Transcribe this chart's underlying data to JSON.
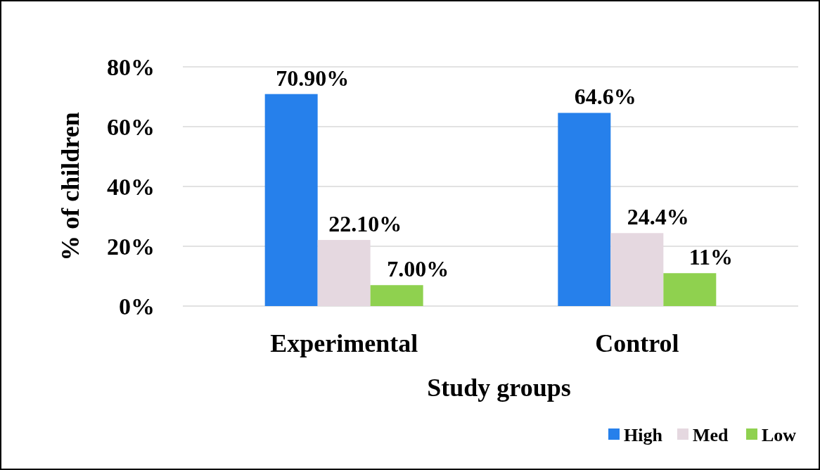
{
  "chart_data": {
    "type": "bar",
    "xlabel": "Study groups",
    "ylabel": "% of children",
    "categories": [
      "Experimental",
      "Control"
    ],
    "series": [
      {
        "name": "High",
        "color": "#2680eb",
        "values": [
          70.9,
          64.6
        ],
        "value_labels": [
          "70.90%",
          "64.6%"
        ]
      },
      {
        "name": "Med",
        "color": "#e5d8e0",
        "values": [
          22.1,
          24.4
        ],
        "value_labels": [
          "22.10%",
          "24.4%"
        ]
      },
      {
        "name": "Low",
        "color": "#8fd14f",
        "values": [
          7.0,
          11
        ],
        "value_labels": [
          "7.00%",
          "11%"
        ]
      }
    ],
    "ylim": [
      0,
      80
    ],
    "yticks": [
      {
        "value": 0,
        "label": "0%"
      },
      {
        "value": 20,
        "label": "20%"
      },
      {
        "value": 40,
        "label": "40%"
      },
      {
        "value": 60,
        "label": "60%"
      },
      {
        "value": 80,
        "label": "80%"
      }
    ],
    "grid": "y",
    "legend": "bottom right"
  }
}
